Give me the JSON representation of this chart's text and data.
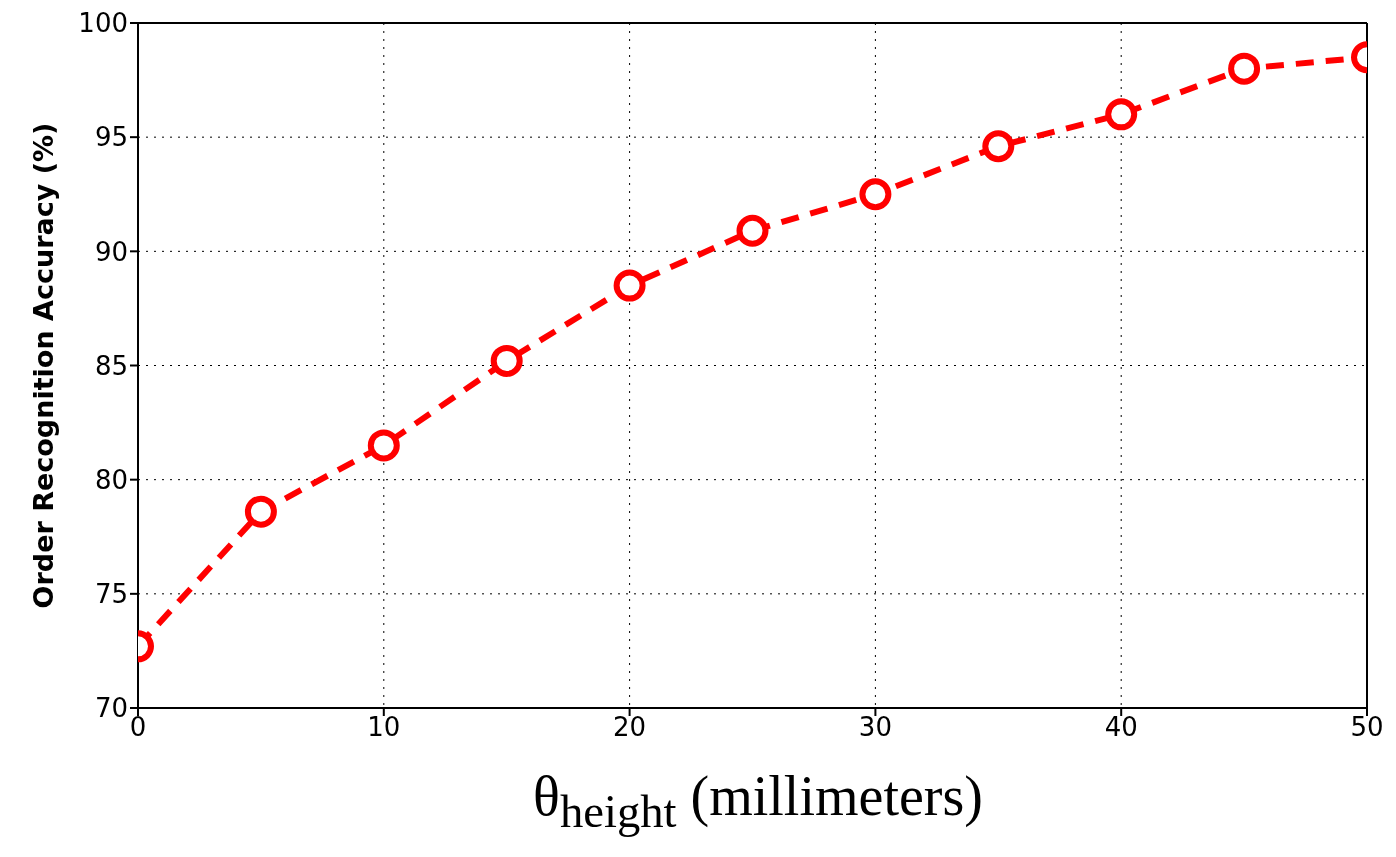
{
  "chart_data": {
    "type": "line",
    "xlabel": "θ$_{height}$ (millimeters)",
    "ylabel": "Order Recognition Accuracy (%)",
    "x": [
      0,
      5,
      10,
      15,
      20,
      25,
      30,
      35,
      40,
      45,
      50
    ],
    "series": [
      {
        "color": "#ff0000",
        "values": [
          72.7,
          78.6,
          81.5,
          85.2,
          88.5,
          90.9,
          92.5,
          94.6,
          96.0,
          98.0,
          98.5
        ]
      }
    ],
    "xlim": [
      0,
      50
    ],
    "xticks": [
      0,
      10,
      20,
      30,
      40,
      50
    ],
    "ylim": [
      70,
      100
    ],
    "yticks": [
      70,
      75,
      80,
      85,
      90,
      95,
      100
    ],
    "grid": true,
    "marker": "circle",
    "line_style": "dashed",
    "legend": false
  }
}
